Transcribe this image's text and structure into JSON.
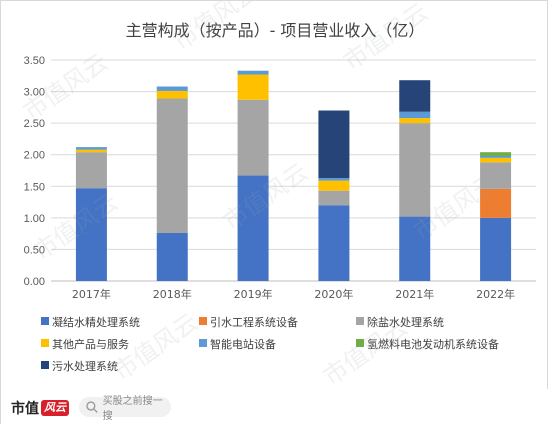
{
  "chart_data": {
    "type": "bar",
    "stacked": true,
    "title": "主营构成（按产品）- 项目营业收入（亿）",
    "categories": [
      "2017年",
      "2018年",
      "2019年",
      "2020年",
      "2021年",
      "2022年"
    ],
    "ylim": [
      0,
      3.5
    ],
    "yticks": [
      "0.00",
      "0.50",
      "1.00",
      "1.50",
      "2.00",
      "2.50",
      "3.00",
      "3.50"
    ],
    "grid": true,
    "legend_position": "bottom",
    "series": [
      {
        "name": "凝结水精处理系统",
        "color": "#4472c4",
        "values": [
          1.47,
          0.76,
          1.67,
          1.2,
          1.02,
          1.0
        ]
      },
      {
        "name": "引水工程系统设备",
        "color": "#ed7d31",
        "values": [
          0,
          0,
          0,
          0,
          0,
          0.46
        ]
      },
      {
        "name": "除盐水处理系统",
        "color": "#a5a5a5",
        "values": [
          0.57,
          2.13,
          1.2,
          0.23,
          1.48,
          0.42
        ]
      },
      {
        "name": "其他产品与服务",
        "color": "#ffc000",
        "values": [
          0.04,
          0.12,
          0.4,
          0.16,
          0.08,
          0.07
        ]
      },
      {
        "name": "智能电站设备",
        "color": "#5b9bd5",
        "values": [
          0.04,
          0.07,
          0.06,
          0.04,
          0.1,
          0.03
        ]
      },
      {
        "name": "氢燃料电池发动机系统设备",
        "color": "#70ad47",
        "values": [
          0,
          0,
          0,
          0,
          0,
          0.06
        ]
      },
      {
        "name": "污水处理系统",
        "color": "#264478",
        "values": [
          0,
          0,
          0,
          1.07,
          0.5,
          0
        ]
      }
    ]
  },
  "watermark": "市值风云",
  "footer": {
    "brand": "市值",
    "brand_badge": "风云",
    "search_hint": "买股之前搜一搜"
  }
}
